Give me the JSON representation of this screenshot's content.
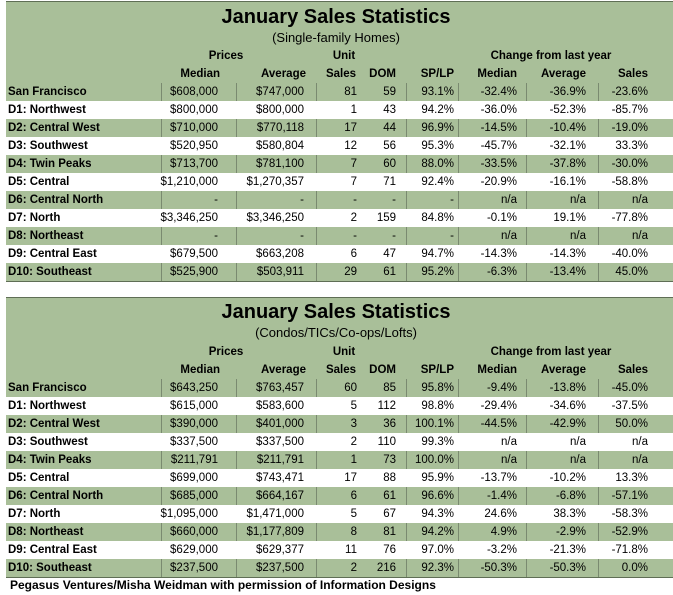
{
  "column_headers": {
    "prices": "Prices",
    "unit": "Unit",
    "change": "Change from last year",
    "median": "Median",
    "average": "Average",
    "sales": "Sales",
    "dom": "DOM",
    "splp": "SP/LP",
    "chg_median": "Median",
    "chg_average": "Average",
    "chg_sales": "Sales"
  },
  "tables": [
    {
      "title": "January Sales Statistics",
      "subtitle": "(Single-family Homes)",
      "rows": [
        {
          "district": "San Francisco",
          "median": "$608,000",
          "average": "$747,000",
          "sales": "81",
          "dom": "59",
          "splp": "93.1%",
          "chg_median": "-32.4%",
          "chg_average": "-36.9%",
          "chg_sales": "-23.6%"
        },
        {
          "district": "D1: Northwest",
          "median": "$800,000",
          "average": "$800,000",
          "sales": "1",
          "dom": "43",
          "splp": "94.2%",
          "chg_median": "-36.0%",
          "chg_average": "-52.3%",
          "chg_sales": "-85.7%"
        },
        {
          "district": "D2: Central West",
          "median": "$710,000",
          "average": "$770,118",
          "sales": "17",
          "dom": "44",
          "splp": "96.9%",
          "chg_median": "-14.5%",
          "chg_average": "-10.4%",
          "chg_sales": "-19.0%"
        },
        {
          "district": "D3: Southwest",
          "median": "$520,950",
          "average": "$580,804",
          "sales": "12",
          "dom": "56",
          "splp": "95.3%",
          "chg_median": "-45.7%",
          "chg_average": "-32.1%",
          "chg_sales": "33.3%"
        },
        {
          "district": "D4: Twin Peaks",
          "median": "$713,700",
          "average": "$781,100",
          "sales": "7",
          "dom": "60",
          "splp": "88.0%",
          "chg_median": "-33.5%",
          "chg_average": "-37.8%",
          "chg_sales": "-30.0%"
        },
        {
          "district": "D5: Central",
          "median": "$1,210,000",
          "average": "$1,270,357",
          "sales": "7",
          "dom": "71",
          "splp": "92.4%",
          "chg_median": "-20.9%",
          "chg_average": "-16.1%",
          "chg_sales": "-58.8%"
        },
        {
          "district": "D6: Central North",
          "median": "-",
          "average": "-",
          "sales": "-",
          "dom": "-",
          "splp": "-",
          "chg_median": "n/a",
          "chg_average": "n/a",
          "chg_sales": "n/a"
        },
        {
          "district": "D7: North",
          "median": "$3,346,250",
          "average": "$3,346,250",
          "sales": "2",
          "dom": "159",
          "splp": "84.8%",
          "chg_median": "-0.1%",
          "chg_average": "19.1%",
          "chg_sales": "-77.8%"
        },
        {
          "district": "D8: Northeast",
          "median": "-",
          "average": "-",
          "sales": "-",
          "dom": "-",
          "splp": "-",
          "chg_median": "n/a",
          "chg_average": "n/a",
          "chg_sales": "n/a"
        },
        {
          "district": "D9: Central East",
          "median": "$679,500",
          "average": "$663,208",
          "sales": "6",
          "dom": "47",
          "splp": "94.7%",
          "chg_median": "-14.3%",
          "chg_average": "-14.3%",
          "chg_sales": "-40.0%"
        },
        {
          "district": "D10: Southeast",
          "median": "$525,900",
          "average": "$503,911",
          "sales": "29",
          "dom": "61",
          "splp": "95.2%",
          "chg_median": "-6.3%",
          "chg_average": "-13.4%",
          "chg_sales": "45.0%"
        }
      ]
    },
    {
      "title": "January Sales Statistics",
      "subtitle": "(Condos/TICs/Co-ops/Lofts)",
      "rows": [
        {
          "district": "San Francisco",
          "median": "$643,250",
          "average": "$763,457",
          "sales": "60",
          "dom": "85",
          "splp": "95.8%",
          "chg_median": "-9.4%",
          "chg_average": "-13.8%",
          "chg_sales": "-45.0%"
        },
        {
          "district": "D1: Northwest",
          "median": "$615,000",
          "average": "$583,600",
          "sales": "5",
          "dom": "112",
          "splp": "98.8%",
          "chg_median": "-29.4%",
          "chg_average": "-34.6%",
          "chg_sales": "-37.5%"
        },
        {
          "district": "D2: Central West",
          "median": "$390,000",
          "average": "$401,000",
          "sales": "3",
          "dom": "36",
          "splp": "100.1%",
          "chg_median": "-44.5%",
          "chg_average": "-42.9%",
          "chg_sales": "50.0%"
        },
        {
          "district": "D3: Southwest",
          "median": "$337,500",
          "average": "$337,500",
          "sales": "2",
          "dom": "110",
          "splp": "99.3%",
          "chg_median": "n/a",
          "chg_average": "n/a",
          "chg_sales": "n/a"
        },
        {
          "district": "D4: Twin Peaks",
          "median": "$211,791",
          "average": "$211,791",
          "sales": "1",
          "dom": "73",
          "splp": "100.0%",
          "chg_median": "n/a",
          "chg_average": "n/a",
          "chg_sales": "n/a"
        },
        {
          "district": "D5: Central",
          "median": "$699,000",
          "average": "$743,471",
          "sales": "17",
          "dom": "88",
          "splp": "95.9%",
          "chg_median": "-13.7%",
          "chg_average": "-10.2%",
          "chg_sales": "13.3%"
        },
        {
          "district": "D6: Central North",
          "median": "$685,000",
          "average": "$664,167",
          "sales": "6",
          "dom": "61",
          "splp": "96.6%",
          "chg_median": "-1.4%",
          "chg_average": "-6.8%",
          "chg_sales": "-57.1%"
        },
        {
          "district": "D7: North",
          "median": "$1,095,000",
          "average": "$1,471,000",
          "sales": "5",
          "dom": "67",
          "splp": "94.3%",
          "chg_median": "24.6%",
          "chg_average": "38.3%",
          "chg_sales": "-58.3%"
        },
        {
          "district": "D8: Northeast",
          "median": "$660,000",
          "average": "$1,177,809",
          "sales": "8",
          "dom": "81",
          "splp": "94.2%",
          "chg_median": "4.9%",
          "chg_average": "-2.9%",
          "chg_sales": "-52.9%"
        },
        {
          "district": "D9: Central East",
          "median": "$629,000",
          "average": "$629,377",
          "sales": "11",
          "dom": "76",
          "splp": "97.0%",
          "chg_median": "-3.2%",
          "chg_average": "-21.3%",
          "chg_sales": "-71.8%"
        },
        {
          "district": "D10: Southeast",
          "median": "$237,500",
          "average": "$237,500",
          "sales": "2",
          "dom": "216",
          "splp": "92.3%",
          "chg_median": "-50.3%",
          "chg_average": "-50.3%",
          "chg_sales": "0.0%"
        }
      ]
    }
  ],
  "footer": "Pegasus Ventures/Misha Weidman with permission of Information Designs"
}
